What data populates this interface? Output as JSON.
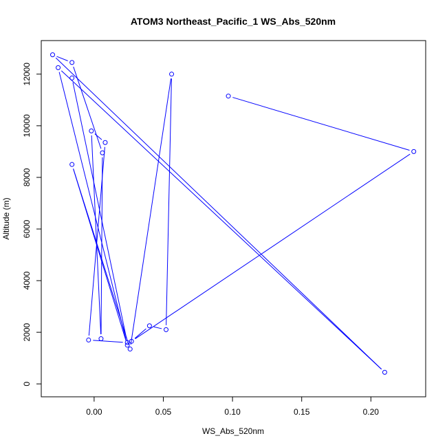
{
  "chart_data": {
    "type": "line",
    "title": "ATOM3 Northeast_Pacific_1 WS_Abs_520nm",
    "xlabel": "WS_Abs_520nm",
    "ylabel": "Altitude (m)",
    "xlim": [
      -0.0382,
      0.2396
    ],
    "ylim": [
      -500,
      13300
    ],
    "x_ticks": [
      0.0,
      0.05,
      0.1,
      0.15,
      0.2
    ],
    "x_tick_labels": [
      "0.00",
      "0.05",
      "0.10",
      "0.15",
      "0.20"
    ],
    "y_ticks": [
      0,
      2000,
      4000,
      6000,
      8000,
      10000,
      12000
    ],
    "y_tick_labels": [
      "0",
      "2000",
      "4000",
      "6000",
      "8000",
      "10000",
      "12000"
    ],
    "grid": false,
    "color": "#0000ff",
    "markers": "open-circle",
    "series": [
      {
        "points": [
          {
            "x": 0.097,
            "y": 11150
          },
          {
            "x": 0.231,
            "y": 9000
          },
          {
            "x": 0.027,
            "y": 1650
          },
          {
            "x": 0.04,
            "y": 2250
          },
          {
            "x": 0.052,
            "y": 2100
          },
          {
            "x": 0.056,
            "y": 12000
          },
          {
            "x": 0.026,
            "y": 1350
          },
          {
            "x": -0.016,
            "y": 8500
          },
          {
            "x": 0.024,
            "y": 1500
          },
          {
            "x": -0.026,
            "y": 12250
          },
          {
            "x": 0.21,
            "y": 450
          },
          {
            "x": -0.03,
            "y": 12750
          },
          {
            "x": -0.016,
            "y": 12450
          },
          {
            "x": 0.006,
            "y": 8950
          },
          {
            "x": 0.005,
            "y": 1750
          },
          {
            "x": -0.002,
            "y": 9800
          },
          {
            "x": 0.008,
            "y": 9350
          },
          {
            "x": -0.004,
            "y": 1700
          },
          {
            "x": 0.024,
            "y": 1600
          },
          {
            "x": -0.016,
            "y": 11850
          }
        ]
      }
    ]
  }
}
